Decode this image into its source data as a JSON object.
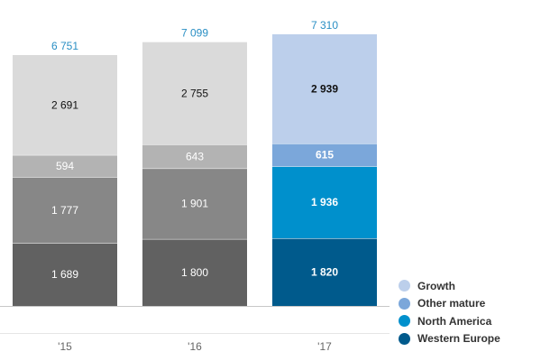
{
  "chart_data": {
    "type": "bar",
    "stacked": true,
    "categories": [
      "'15",
      "'16",
      "'17"
    ],
    "totals": [
      "6 751",
      "7 099",
      "7 310"
    ],
    "total_values": [
      6751,
      7099,
      7310
    ],
    "series": [
      {
        "name": "Western Europe",
        "values": [
          1689,
          1800,
          1820
        ],
        "labels": [
          "1 689",
          "1 800",
          "1 820"
        ]
      },
      {
        "name": "North America",
        "values": [
          1777,
          1901,
          1936
        ],
        "labels": [
          "1 777",
          "1 901",
          "1 936"
        ]
      },
      {
        "name": "Other mature",
        "values": [
          594,
          643,
          615
        ],
        "labels": [
          "594",
          "643",
          "615"
        ]
      },
      {
        "name": "Growth",
        "values": [
          2691,
          2755,
          2939
        ],
        "labels": [
          "2 691",
          "2 755",
          "2 939"
        ]
      }
    ],
    "gray_colors": [
      "#616161",
      "#878787",
      "#b3b3b3",
      "#dadada"
    ],
    "highlight_colors": [
      "#005a8c",
      "#0090cc",
      "#7ba7da",
      "#bccfeb"
    ],
    "highlight_category": "'17",
    "total_label_color": "#2a8fc4",
    "legend": [
      {
        "name": "Growth",
        "color": "#bccfeb"
      },
      {
        "name": "Other mature",
        "color": "#7ba7da"
      },
      {
        "name": "North America",
        "color": "#0090cc"
      },
      {
        "name": "Western Europe",
        "color": "#005a8c"
      }
    ],
    "legend_position": "bottom-right",
    "grid": false
  }
}
